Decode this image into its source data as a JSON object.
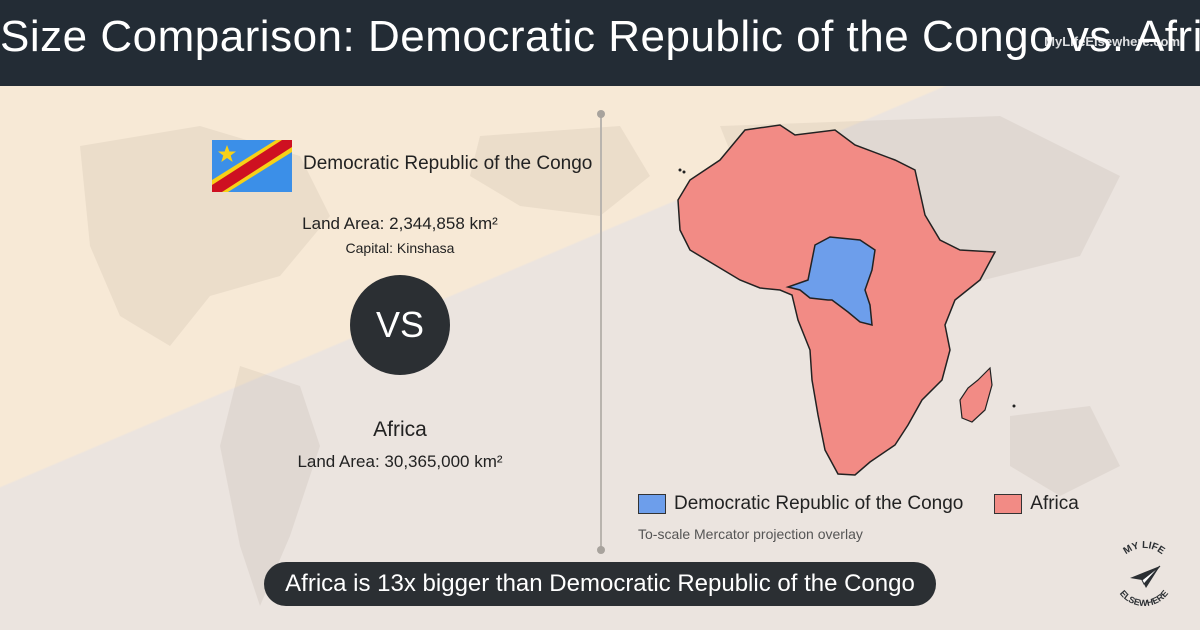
{
  "header": {
    "title": "Size Comparison: Democratic Republic of the Congo vs. Africa",
    "watermark": "MyLifeElsewhere.com"
  },
  "country1": {
    "name": "Democratic Republic of the Congo",
    "land_area_label": "Land Area:",
    "land_area_value": "2,344,858 km²",
    "capital_label": "Capital:",
    "capital_value": "Kinshasa",
    "flag_icon": "drc-flag-icon",
    "color": "#6d9eeb"
  },
  "vs_label": "VS",
  "country2": {
    "name": "Africa",
    "land_area_label": "Land Area:",
    "land_area_value": "30,365,000 km²",
    "color": "#f28b85"
  },
  "legend": {
    "items": [
      {
        "label": "Democratic Republic of the Congo",
        "color": "#6d9eeb"
      },
      {
        "label": "Africa",
        "color": "#f28b85"
      }
    ],
    "note": "To-scale Mercator projection overlay"
  },
  "summary": "Africa is 13x bigger than Democratic Republic of the Congo",
  "brand": {
    "logo_text_top": "MY LIFE",
    "logo_text_bottom": "ELSEWHERE",
    "icon": "paper-plane-icon"
  }
}
